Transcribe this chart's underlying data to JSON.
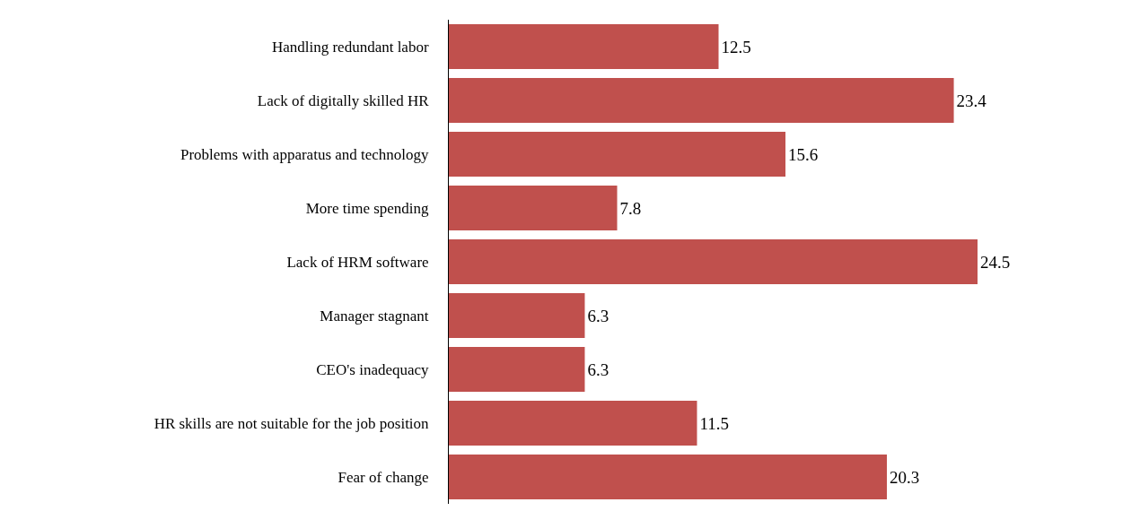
{
  "chart_data": {
    "type": "bar",
    "orientation": "horizontal",
    "data_labels": true,
    "categories": [
      "Handling redundant labor",
      "Lack of digitally skilled HR",
      "Problems with apparatus and technology",
      "More time spending",
      "Lack of HRM software",
      "Manager stagnant",
      "CEO's inadequacy",
      "HR skills are not suitable for the job position",
      "Fear of change"
    ],
    "values": [
      12.5,
      23.4,
      15.6,
      7.8,
      24.5,
      6.3,
      6.3,
      11.5,
      20.3
    ],
    "color": "#c0504d"
  }
}
